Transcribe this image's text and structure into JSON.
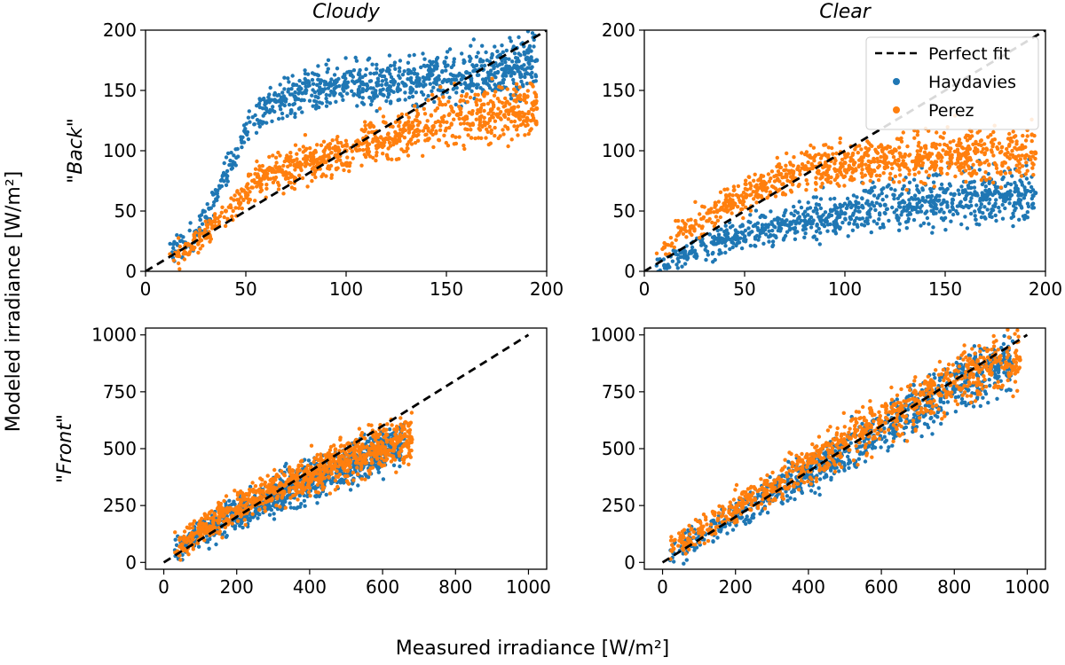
{
  "figure": {
    "xlabel": "Measured irradiance [W/m²]",
    "ylabel": "Modeled irradiance [W/m²]",
    "column_titles": [
      "Cloudy",
      "Clear"
    ],
    "row_labels": [
      {
        "quote_open": "\"",
        "text": "Back",
        "quote_close": "\""
      },
      {
        "quote_open": "\"",
        "text": "Front",
        "quote_close": "\""
      }
    ],
    "legend": {
      "items": [
        "Perfect fit",
        "Haydavies",
        "Perez"
      ],
      "placement": "upper-right of Clear/Back panel"
    }
  },
  "colors": {
    "haydavies": "#1f77b4",
    "perez": "#ff7f0e",
    "perfect_fit": "#000000",
    "axes": "#000000"
  },
  "chart_data": [
    {
      "type": "scatter",
      "panel": "Cloudy / Back",
      "xlim": [
        0,
        200
      ],
      "ylim": [
        0,
        200
      ],
      "xticks": [
        0,
        50,
        100,
        150,
        200
      ],
      "yticks": [
        0,
        50,
        100,
        150,
        200
      ],
      "series": [
        {
          "name": "Perfect fit",
          "kind": "line",
          "x": [
            0,
            200
          ],
          "y": [
            0,
            200
          ]
        },
        {
          "name": "Haydavies",
          "kind": "scatter",
          "x": [
            20,
            30,
            40,
            50,
            60,
            80,
            100,
            120,
            140,
            160,
            180,
            195
          ],
          "y": [
            20,
            45,
            80,
            115,
            135,
            150,
            155,
            155,
            160,
            165,
            170,
            175
          ]
        },
        {
          "name": "Perez",
          "kind": "scatter",
          "x": [
            20,
            30,
            40,
            50,
            60,
            80,
            100,
            120,
            140,
            160,
            180,
            195
          ],
          "y": [
            15,
            30,
            50,
            65,
            80,
            90,
            100,
            110,
            120,
            128,
            133,
            135
          ]
        }
      ]
    },
    {
      "type": "scatter",
      "panel": "Clear / Back",
      "xlim": [
        0,
        200
      ],
      "ylim": [
        0,
        200
      ],
      "xticks": [
        0,
        50,
        100,
        150,
        200
      ],
      "yticks": [
        0,
        50,
        100,
        150,
        200
      ],
      "series": [
        {
          "name": "Perfect fit",
          "kind": "line",
          "x": [
            0,
            200
          ],
          "y": [
            0,
            200
          ]
        },
        {
          "name": "Haydavies",
          "kind": "scatter",
          "x": [
            10,
            20,
            40,
            60,
            80,
            100,
            120,
            140,
            160,
            180,
            195
          ],
          "y": [
            5,
            15,
            25,
            35,
            42,
            48,
            55,
            58,
            60,
            63,
            65
          ]
        },
        {
          "name": "Perez",
          "kind": "scatter",
          "x": [
            10,
            20,
            40,
            60,
            80,
            100,
            120,
            140,
            160,
            180,
            195
          ],
          "y": [
            20,
            35,
            55,
            72,
            85,
            90,
            93,
            95,
            96,
            97,
            98
          ]
        }
      ]
    },
    {
      "type": "scatter",
      "panel": "Cloudy / Front",
      "xlim": [
        -50,
        1050
      ],
      "ylim": [
        -30,
        1030
      ],
      "xticks": [
        0,
        200,
        400,
        600,
        800,
        1000
      ],
      "yticks": [
        0,
        250,
        500,
        750,
        1000
      ],
      "series": [
        {
          "name": "Perfect fit",
          "kind": "line",
          "x": [
            0,
            1000
          ],
          "y": [
            0,
            1000
          ]
        },
        {
          "name": "Haydavies",
          "kind": "scatter",
          "x": [
            50,
            100,
            200,
            300,
            400,
            500,
            600,
            660
          ],
          "y": [
            70,
            120,
            210,
            290,
            360,
            430,
            490,
            520
          ]
        },
        {
          "name": "Perez",
          "kind": "scatter",
          "x": [
            50,
            100,
            200,
            300,
            400,
            500,
            600,
            680
          ],
          "y": [
            80,
            140,
            240,
            320,
            390,
            450,
            510,
            540
          ]
        }
      ]
    },
    {
      "type": "scatter",
      "panel": "Clear / Front",
      "xlim": [
        -50,
        1050
      ],
      "ylim": [
        -30,
        1030
      ],
      "xticks": [
        0,
        200,
        400,
        600,
        800,
        1000
      ],
      "yticks": [
        0,
        250,
        500,
        750,
        1000
      ],
      "series": [
        {
          "name": "Perfect fit",
          "kind": "line",
          "x": [
            0,
            1000
          ],
          "y": [
            0,
            1000
          ]
        },
        {
          "name": "Haydavies",
          "kind": "scatter",
          "x": [
            30,
            100,
            200,
            300,
            400,
            500,
            600,
            700,
            800,
            900,
            960
          ],
          "y": [
            40,
            110,
            210,
            300,
            400,
            490,
            580,
            680,
            770,
            850,
            880
          ]
        },
        {
          "name": "Perez",
          "kind": "scatter",
          "x": [
            30,
            100,
            200,
            300,
            400,
            500,
            600,
            700,
            800,
            900,
            980
          ],
          "y": [
            60,
            130,
            240,
            340,
            440,
            530,
            620,
            710,
            790,
            860,
            890
          ]
        }
      ]
    }
  ]
}
